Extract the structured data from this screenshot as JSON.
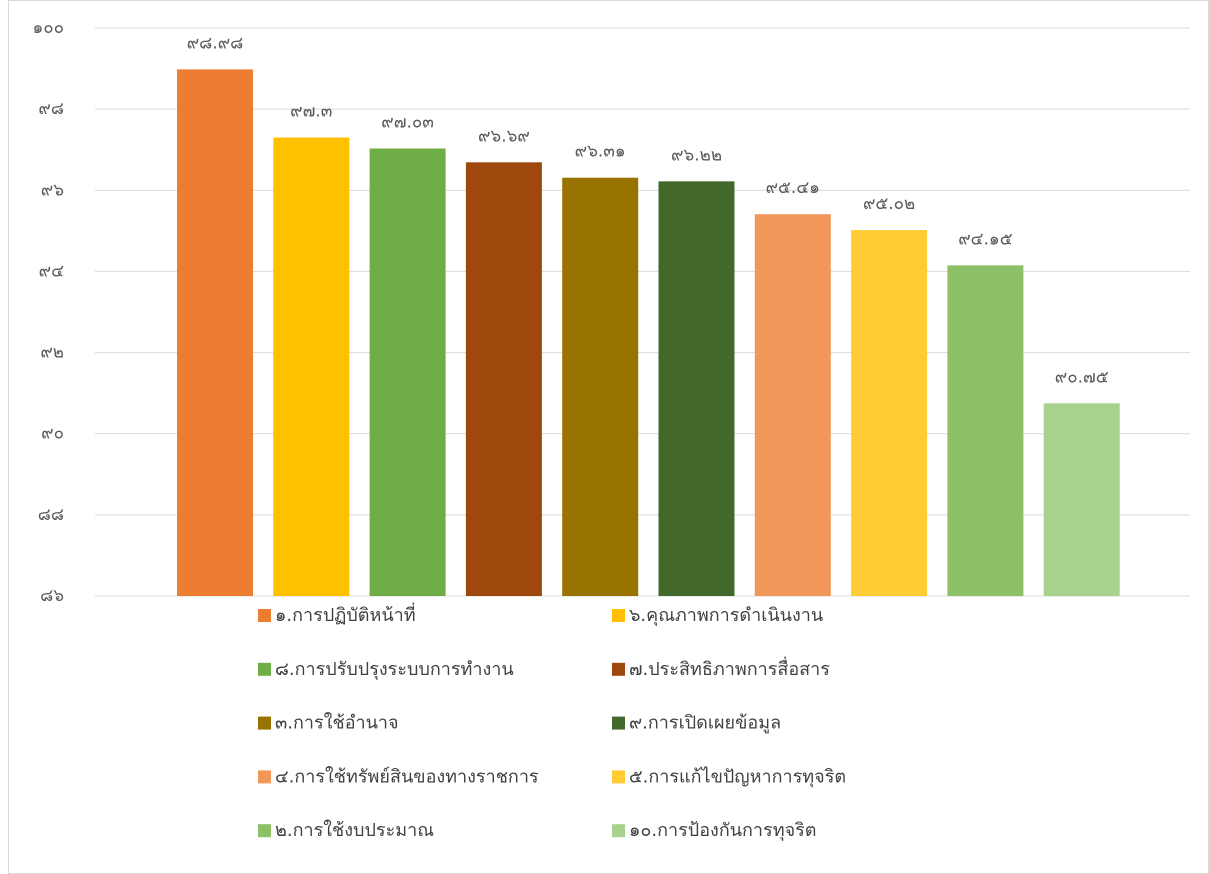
{
  "chart_data": {
    "type": "bar",
    "categories": [
      "๑.การปฏิบัติหน้าที่",
      "๖.คุณภาพการดำเนินงาน",
      "๘.การปรับปรุงระบบการทำงาน",
      "๗.ประสิทธิภาพการสื่อสาร",
      "๓.การใช้อำนาจ",
      "๙.การเปิดเผยข้อมูล",
      "๔.การใช้ทรัพย์สินของทางราชการ",
      "๕.การแก้ไขปัญหาการทุจริต",
      "๒.การใช้งบประมาณ",
      "๑๐.การป้องกันการทุจริต"
    ],
    "values": [
      98.98,
      97.3,
      97.03,
      96.69,
      96.31,
      96.22,
      95.41,
      95.02,
      94.15,
      90.75
    ],
    "value_labels": [
      "๙๘.๙๘",
      "๙๗.๓",
      "๙๗.๐๓",
      "๙๖.๖๙",
      "๙๖.๓๑",
      "๙๖.๒๒",
      "๙๕.๔๑",
      "๙๕.๐๒",
      "๙๔.๑๕",
      "๙๐.๗๕"
    ],
    "colors": [
      "#ed7d31",
      "#ffc000",
      "#70ad47",
      "#9e480e",
      "#997300",
      "#43682b",
      "#f1975a",
      "#ffcd33",
      "#8cc168",
      "#a9d18e"
    ],
    "ylim": [
      86,
      100
    ],
    "yticks": [
      {
        "value": 86,
        "label": "๘๖"
      },
      {
        "value": 88,
        "label": "๘๘"
      },
      {
        "value": 90,
        "label": "๙๐"
      },
      {
        "value": 92,
        "label": "๙๒"
      },
      {
        "value": 94,
        "label": "๙๔"
      },
      {
        "value": 96,
        "label": "๙๖"
      },
      {
        "value": 98,
        "label": "๙๘"
      },
      {
        "value": 100,
        "label": "๑๐๐"
      }
    ],
    "grid": true
  }
}
